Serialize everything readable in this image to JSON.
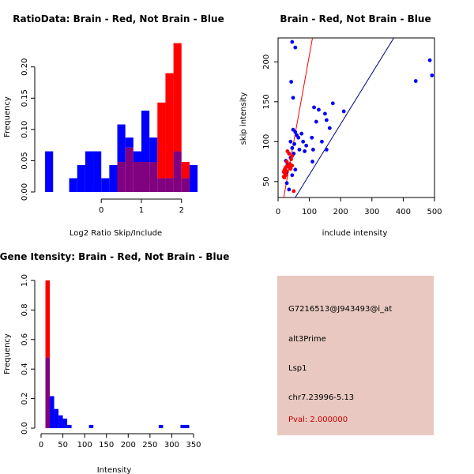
{
  "chart_data": [
    {
      "type": "histogram",
      "title": "RatioData: Brain - Red, Not Brain - Blue",
      "xlabel": "Log2 Ratio Skip/Include",
      "ylabel": "Frequency",
      "xlim": [
        -1.5,
        2.3
      ],
      "ylim": [
        0,
        0.235
      ],
      "xticks": [
        "0",
        "1",
        "2"
      ],
      "yticks": [
        "0.00",
        "0.05",
        "0.10",
        "0.15",
        "0.20"
      ],
      "bin_width": 0.2,
      "series": [
        {
          "name": "Not Brain",
          "color": "#0000ff",
          "bin_starts": [
            -1.4,
            -1.2,
            -1.0,
            -0.8,
            -0.6,
            -0.4,
            -0.2,
            0.0,
            0.2,
            0.4,
            0.6,
            0.8,
            1.0,
            1.2,
            1.4,
            1.6,
            1.8,
            2.0,
            2.2
          ],
          "values": [
            0.065,
            0,
            0,
            0.022,
            0.043,
            0.065,
            0.065,
            0.022,
            0.043,
            0.108,
            0.087,
            0.065,
            0.13,
            0.087,
            0.022,
            0.022,
            0.065,
            0.022,
            0.043
          ]
        },
        {
          "name": "Brain",
          "color": "#ff0000",
          "bin_starts": [
            0.2,
            0.4,
            0.6,
            0.8,
            1.0,
            1.2,
            1.4,
            1.6,
            1.8,
            2.0
          ],
          "values": [
            0,
            0.048,
            0.071,
            0.048,
            0.048,
            0.048,
            0.143,
            0.19,
            0.238,
            0.048
          ]
        }
      ]
    },
    {
      "type": "scatter",
      "title": "Brain - Red, Not Brain - Blue",
      "xlabel": "include intensity",
      "ylabel": "skip intensity",
      "xlim": [
        0,
        500
      ],
      "ylim": [
        30,
        230
      ],
      "xticks": [
        "0",
        "100",
        "200",
        "300",
        "400",
        "500"
      ],
      "yticks": [
        "50",
        "100",
        "150",
        "200"
      ],
      "series": [
        {
          "name": "Not Brain",
          "color": "#0000ff",
          "points": [
            [
              45,
              225
            ],
            [
              55,
              218
            ],
            [
              42,
              175
            ],
            [
              48,
              155
            ],
            [
              485,
              202
            ],
            [
              492,
              183
            ],
            [
              440,
              176
            ],
            [
              175,
              148
            ],
            [
              115,
              143
            ],
            [
              130,
              140
            ],
            [
              210,
              138
            ],
            [
              150,
              135
            ],
            [
              155,
              127
            ],
            [
              122,
              125
            ],
            [
              165,
              117
            ],
            [
              48,
              115
            ],
            [
              55,
              112
            ],
            [
              60,
              108
            ],
            [
              75,
              110
            ],
            [
              65,
              105
            ],
            [
              108,
              105
            ],
            [
              40,
              100
            ],
            [
              52,
              97
            ],
            [
              80,
              100
            ],
            [
              90,
              95
            ],
            [
              140,
              100
            ],
            [
              112,
              90
            ],
            [
              155,
              90
            ],
            [
              45,
              92
            ],
            [
              68,
              90
            ],
            [
              85,
              88
            ],
            [
              35,
              85
            ],
            [
              50,
              85
            ],
            [
              40,
              80
            ],
            [
              110,
              75
            ],
            [
              30,
              72
            ],
            [
              25,
              76
            ],
            [
              40,
              68
            ],
            [
              55,
              65
            ],
            [
              28,
              62
            ],
            [
              45,
              58
            ],
            [
              28,
              48
            ],
            [
              35,
              40
            ]
          ]
        },
        {
          "name": "Brain",
          "color": "#ff0000",
          "points": [
            [
              30,
              88
            ],
            [
              35,
              85
            ],
            [
              45,
              82
            ],
            [
              42,
              78
            ],
            [
              28,
              75
            ],
            [
              38,
              72
            ],
            [
              30,
              70
            ],
            [
              25,
              68
            ],
            [
              22,
              66
            ],
            [
              20,
              64
            ],
            [
              28,
              63
            ],
            [
              18,
              62
            ],
            [
              22,
              60
            ],
            [
              25,
              58
            ],
            [
              18,
              56
            ],
            [
              20,
              55
            ],
            [
              35,
              68
            ],
            [
              40,
              66
            ],
            [
              45,
              70
            ],
            [
              50,
              38
            ]
          ]
        }
      ],
      "lines": [
        {
          "name": "Brain fit",
          "color": "#ff0000",
          "from": [
            18,
            30
          ],
          "to": [
            110,
            230
          ]
        },
        {
          "name": "Not Brain fit",
          "color": "#000080",
          "from": [
            55,
            30
          ],
          "to": [
            370,
            230
          ]
        }
      ]
    },
    {
      "type": "histogram",
      "title": "Gene Itensity: Brain - Red, Not Brain - Blue",
      "xlabel": "Intensity",
      "ylabel": "Frequency",
      "xlim": [
        0,
        350
      ],
      "ylim": [
        0,
        1.0
      ],
      "xticks": [
        "0",
        "50",
        "100",
        "150",
        "200",
        "250",
        "300",
        "350"
      ],
      "yticks": [
        "0.0",
        "0.2",
        "0.4",
        "0.6",
        "0.8",
        "1.0"
      ],
      "bin_width": 10,
      "series": [
        {
          "name": "Not Brain",
          "color": "#0000ff",
          "bin_starts": [
            10,
            20,
            30,
            40,
            50,
            60,
            70,
            80,
            90,
            100,
            110,
            120,
            130,
            140,
            150,
            160,
            170,
            180,
            190,
            200,
            210,
            220,
            230,
            240,
            250,
            260,
            270,
            280,
            290,
            300,
            310,
            320,
            330,
            340
          ],
          "values": [
            0.478,
            0.217,
            0.13,
            0.087,
            0.065,
            0.022,
            0,
            0,
            0,
            0,
            0.022,
            0,
            0,
            0,
            0,
            0,
            0,
            0,
            0,
            0,
            0,
            0,
            0,
            0,
            0,
            0,
            0.022,
            0,
            0,
            0,
            0,
            0.022,
            0.022,
            0
          ]
        },
        {
          "name": "Brain",
          "color": "#ff0000",
          "bin_starts": [
            10
          ],
          "values": [
            1.0
          ]
        }
      ]
    }
  ],
  "info": {
    "probe": "G7216513@J943493@i_at",
    "type": "alt3Prime",
    "gene": "Lsp1",
    "location": "chr7.23996-5.13",
    "pval": "Pval: 2.000000"
  },
  "colors": {
    "overlap": "#800080",
    "panel": "#e8c8c0",
    "pval": "#cc0000"
  }
}
